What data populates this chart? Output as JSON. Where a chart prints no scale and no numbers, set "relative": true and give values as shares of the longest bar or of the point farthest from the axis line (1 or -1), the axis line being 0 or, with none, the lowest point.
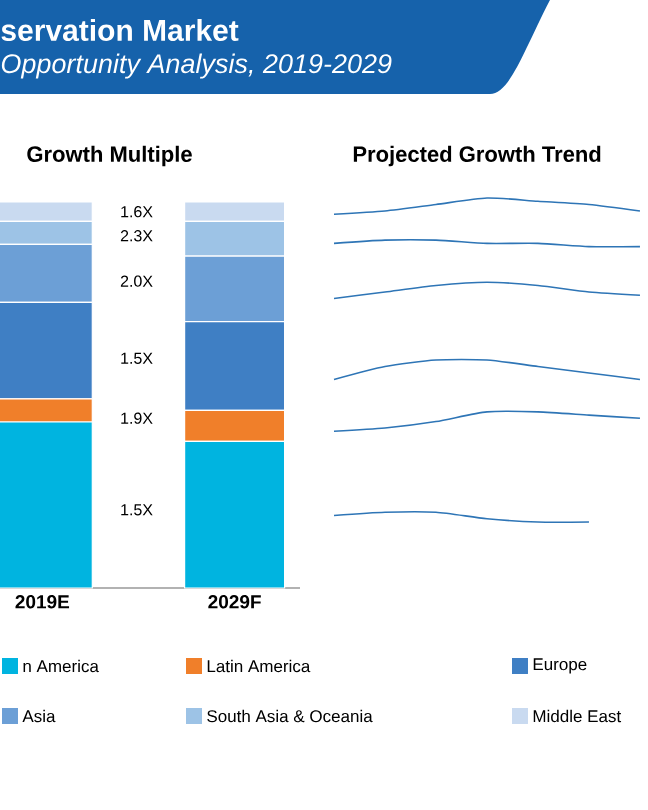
{
  "chart_data": [
    {
      "type": "bar",
      "title": "servation Market",
      "subtitle": "Opportunity Analysis, 2019-2029",
      "stacked": true,
      "relative": true,
      "legend": "bottom",
      "categories": [
        "2019E",
        "2029F"
      ],
      "annotations": [
        "Growth Multiple",
        "1.5X",
        "1.9X",
        "1.5X",
        "2.0X",
        "2.3X",
        "1.6X"
      ],
      "series": [
        {
          "name": "n America",
          "color": "#00b4e0",
          "values": [
            0.43,
            0.38
          ]
        },
        {
          "name": "Latin America",
          "color": "#f07f2a",
          "values": [
            0.06,
            0.08
          ]
        },
        {
          "name": "Europe",
          "color": "#3f7fc4",
          "values": [
            0.25,
            0.23
          ]
        },
        {
          "name": "Asia",
          "color": "#6c9fd6",
          "values": [
            0.15,
            0.17
          ]
        },
        {
          "name": "South Asia & Oceania",
          "color": "#9dc3e6",
          "values": [
            0.06,
            0.09
          ]
        },
        {
          "name": "Middle East",
          "color": "#c9daf0",
          "values": [
            0.05,
            0.05
          ]
        }
      ]
    },
    {
      "type": "line",
      "title": "Projected Growth Trend",
      "relative": true,
      "categories": [
        null,
        null,
        null,
        null,
        null,
        null,
        null
      ],
      "series": [
        {
          "color": "#2e75b6",
          "values": [
            0.95,
            0.96,
            0.98,
            1.0,
            0.99,
            0.98,
            0.96
          ]
        },
        {
          "color": "#2e75b6",
          "values": [
            0.86,
            0.87,
            0.87,
            0.86,
            0.86,
            0.85,
            0.85
          ]
        },
        {
          "color": "#2e75b6",
          "values": [
            0.69,
            0.71,
            0.73,
            0.74,
            0.73,
            0.71,
            0.7
          ]
        },
        {
          "color": "#2e75b6",
          "values": [
            0.44,
            0.48,
            0.5,
            0.5,
            0.48,
            0.46,
            0.44
          ]
        },
        {
          "color": "#2e75b6",
          "values": [
            0.28,
            0.29,
            0.31,
            0.34,
            0.34,
            0.33,
            0.32
          ]
        },
        {
          "color": "#2e75b6",
          "values": [
            0.02,
            0.03,
            0.03,
            0.01,
            0.0,
            0.0,
            null
          ]
        }
      ]
    }
  ]
}
